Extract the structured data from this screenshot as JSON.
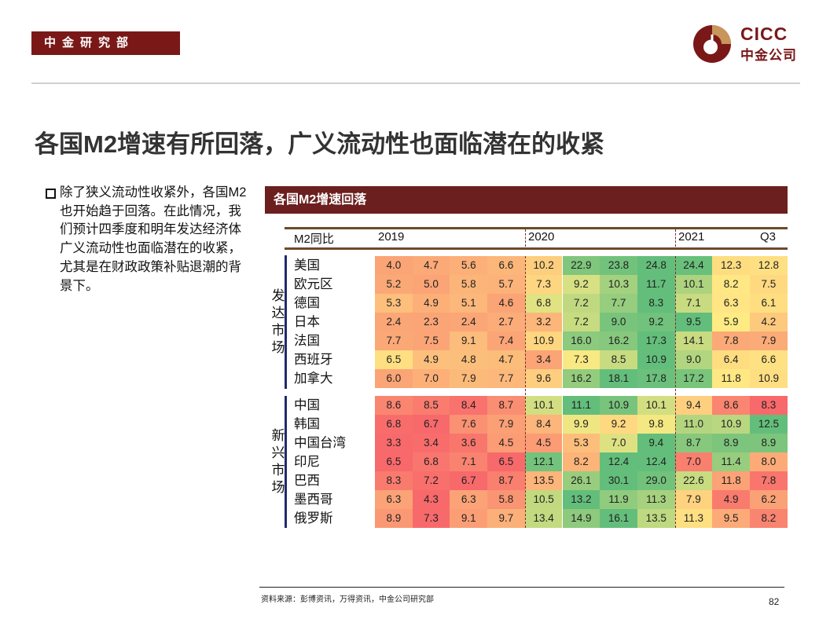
{
  "header": {
    "department": "中金研究部",
    "logo_text_en": "CICC",
    "logo_text_cn": "中金公司"
  },
  "title": "各国M2增速有所回落，广义流动性也面临潜在的收紧",
  "body_text": "除了狭义流动性收紧外，各国M2也开始趋于回落。在此情况，我们预计四季度和明年发达经济体广义流动性也面临潜在的收紧，尤其是在财政政策补贴退潮的背景下。",
  "panel_title": "各国M2增速回落",
  "colors": {
    "brand": "#7a1818",
    "panel": "#6b1f1f",
    "gold": "#c8955a",
    "low": "#f8696b",
    "mid": "#ffeb84",
    "high": "#63be7b"
  },
  "chart_data": {
    "type": "heatmap",
    "corner_label": "M2同比",
    "column_headers": [
      "2019",
      "2020",
      "2021",
      "Q3"
    ],
    "groups": [
      {
        "name": "发达市场",
        "rows": [
          {
            "label": "美国",
            "values": [
              4.0,
              4.7,
              5.6,
              6.6,
              10.2,
              22.9,
              23.8,
              24.8,
              24.4,
              12.3,
              12.8
            ]
          },
          {
            "label": "欧元区",
            "values": [
              5.2,
              5.0,
              5.8,
              5.7,
              7.3,
              9.2,
              10.3,
              11.7,
              10.1,
              8.2,
              7.5
            ]
          },
          {
            "label": "德国",
            "values": [
              5.3,
              4.9,
              5.1,
              4.6,
              6.8,
              7.2,
              7.7,
              8.3,
              7.1,
              6.3,
              6.1
            ]
          },
          {
            "label": "日本",
            "values": [
              2.4,
              2.3,
              2.4,
              2.7,
              3.2,
              7.2,
              9.0,
              9.2,
              9.5,
              5.9,
              4.2
            ]
          },
          {
            "label": "法国",
            "values": [
              7.7,
              7.5,
              9.1,
              7.4,
              10.9,
              16.0,
              16.2,
              17.3,
              14.1,
              7.8,
              7.9
            ]
          },
          {
            "label": "西班牙",
            "values": [
              6.5,
              4.9,
              4.8,
              4.7,
              3.4,
              7.3,
              8.5,
              10.9,
              9.0,
              6.4,
              6.6
            ]
          },
          {
            "label": "加拿大",
            "values": [
              6.0,
              7.0,
              7.9,
              7.7,
              9.6,
              16.2,
              18.1,
              17.8,
              17.2,
              11.8,
              10.9
            ]
          }
        ]
      },
      {
        "name": "新兴市场",
        "rows": [
          {
            "label": "中国",
            "values": [
              8.6,
              8.5,
              8.4,
              8.7,
              10.1,
              11.1,
              10.9,
              10.1,
              9.4,
              8.6,
              8.3
            ]
          },
          {
            "label": "韩国",
            "values": [
              6.8,
              6.7,
              7.6,
              7.9,
              8.4,
              9.9,
              9.2,
              9.8,
              11.0,
              10.9,
              12.5
            ]
          },
          {
            "label": "中国台湾",
            "values": [
              3.3,
              3.4,
              3.6,
              4.5,
              4.5,
              5.3,
              7.0,
              9.4,
              8.7,
              8.9,
              8.9
            ]
          },
          {
            "label": "印尼",
            "values": [
              6.5,
              6.8,
              7.1,
              6.5,
              12.1,
              8.2,
              12.4,
              12.4,
              7.0,
              11.4,
              8.0
            ]
          },
          {
            "label": "巴西",
            "values": [
              8.3,
              7.2,
              6.7,
              8.7,
              13.5,
              26.1,
              30.1,
              29.0,
              22.6,
              11.8,
              7.8
            ]
          },
          {
            "label": "墨西哥",
            "values": [
              6.3,
              4.3,
              6.3,
              5.8,
              10.5,
              13.2,
              11.9,
              11.3,
              7.9,
              4.9,
              6.2
            ]
          },
          {
            "label": "俄罗斯",
            "values": [
              8.9,
              7.3,
              9.1,
              9.7,
              13.4,
              14.9,
              16.1,
              13.5,
              11.3,
              9.5,
              8.2
            ]
          }
        ]
      }
    ]
  },
  "footer": {
    "source": "资料来源：彭博资讯，万得资讯，中金公司研究部",
    "page_number": "82"
  }
}
